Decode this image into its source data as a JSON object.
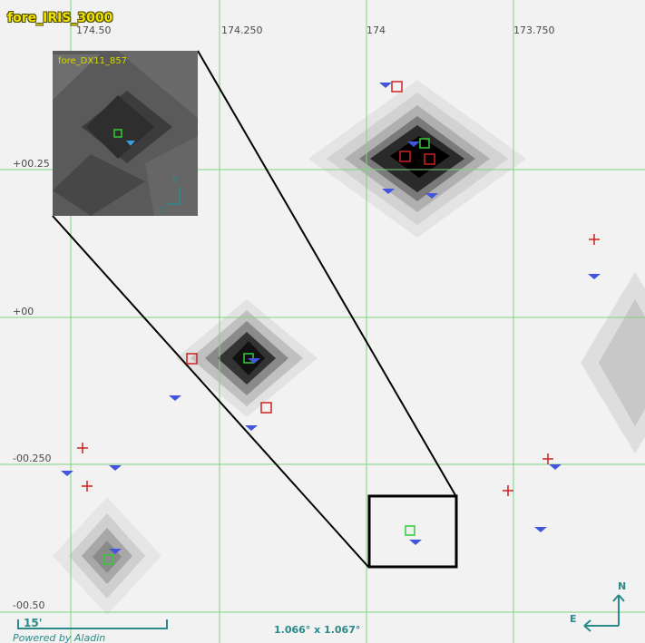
{
  "view": {
    "title": "fore_IRIS_3000",
    "ra_ticks": [
      "174.50",
      "174.250",
      "174",
      "173.750"
    ],
    "dec_ticks": [
      "+00.25",
      "+00",
      "-00.250",
      "-00.50"
    ],
    "field_size": "1.066° x 1.067°",
    "scale_label": "15'",
    "powered_by": "Powered by Aladin",
    "compass": {
      "north": "N",
      "east": "E"
    }
  },
  "inset": {
    "title": "fore_DX11_857",
    "compass": {
      "north": "N",
      "east": "E"
    }
  },
  "colors": {
    "grid": "#7fd27f",
    "red_marker": "#cc2222",
    "green_marker": "#33cc33",
    "blue_marker": "#4455dd",
    "compass": "#2a8a8a",
    "title": "#f0e000"
  }
}
